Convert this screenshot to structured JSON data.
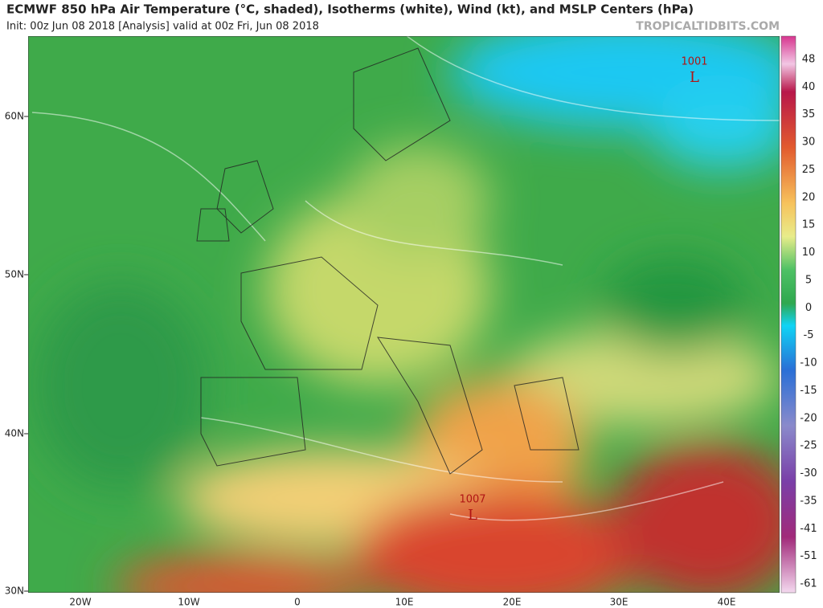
{
  "header": {
    "title": "ECMWF 850 hPa Air Temperature (°C, shaded), Isotherms (white), Wind (kt), and MSLP Centers (hPa)",
    "subtitle": "Init: 00z Jun 08 2018   [Analysis]   valid at 00z Fri, Jun 08 2018",
    "watermark": "TROPICALTIDBITS.COM"
  },
  "map": {
    "lat_labels": [
      "60N",
      "50N",
      "40N",
      "30N"
    ],
    "lon_labels": [
      "20W",
      "10W",
      "0",
      "10E",
      "20E",
      "30E",
      "40E"
    ],
    "pressure_centers": [
      {
        "value": "1001",
        "symbol": "L"
      },
      {
        "value": "1007",
        "symbol": "L"
      }
    ]
  },
  "colorbar": {
    "labels": [
      48,
      40,
      35,
      30,
      25,
      20,
      15,
      10,
      5,
      0,
      -5,
      -10,
      -15,
      -20,
      -25,
      -30,
      -35,
      -41,
      -51,
      -61
    ]
  }
}
